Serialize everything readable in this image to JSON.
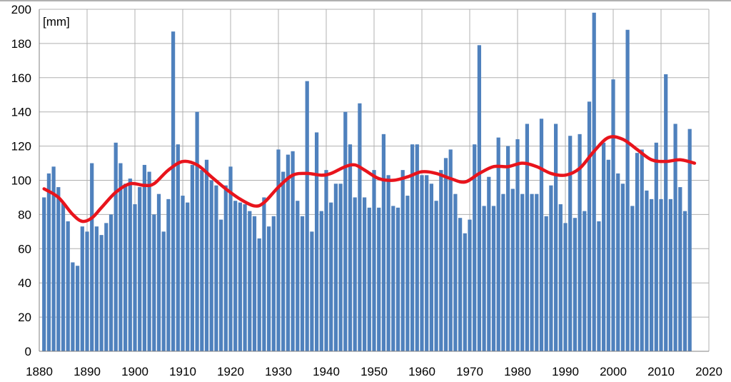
{
  "chart_data": {
    "type": "bar",
    "unit_label": "[mm]",
    "x_start_year": 1881,
    "xlim": [
      1880,
      2020
    ],
    "ylim": [
      0,
      200
    ],
    "x_ticks": [
      "1880",
      "1890",
      "1900",
      "1910",
      "1920",
      "1930",
      "1940",
      "1950",
      "1960",
      "1970",
      "1980",
      "1990",
      "2000",
      "2010",
      "2020"
    ],
    "y_ticks": [
      "0",
      "20",
      "40",
      "60",
      "80",
      "100",
      "120",
      "140",
      "160",
      "180",
      "200"
    ],
    "grid": true,
    "bar_color": "#4f81bd",
    "line_color": "#e8141c",
    "values": [
      90,
      104,
      108,
      96,
      87,
      76,
      52,
      50,
      73,
      70,
      110,
      73,
      68,
      75,
      80,
      122,
      110,
      98,
      101,
      86,
      96,
      109,
      105,
      80,
      92,
      70,
      89,
      187,
      121,
      91,
      87,
      109,
      140,
      106,
      112,
      100,
      97,
      77,
      97,
      108,
      88,
      87,
      86,
      82,
      79,
      66,
      90,
      73,
      79,
      118,
      105,
      115,
      117,
      88,
      79,
      158,
      70,
      128,
      82,
      106,
      87,
      98,
      98,
      140,
      121,
      90,
      145,
      90,
      84,
      106,
      84,
      127,
      103,
      85,
      84,
      106,
      91,
      121,
      121,
      103,
      103,
      98,
      88,
      106,
      113,
      118,
      92,
      78,
      69,
      77,
      121,
      179,
      85,
      102,
      85,
      125,
      92,
      120,
      95,
      124,
      92,
      133,
      92,
      92,
      136,
      79,
      97,
      133,
      86,
      75,
      126,
      78,
      127,
      82,
      146,
      198,
      76,
      122,
      112,
      159,
      104,
      98,
      188,
      85,
      116,
      118,
      94,
      89,
      122,
      89,
      162,
      89,
      133,
      96,
      82,
      130
    ],
    "trend": [
      [
        1881,
        95
      ],
      [
        1884,
        90
      ],
      [
        1887,
        80
      ],
      [
        1889,
        76
      ],
      [
        1891,
        78
      ],
      [
        1893,
        84
      ],
      [
        1896,
        93
      ],
      [
        1899,
        98
      ],
      [
        1902,
        97
      ],
      [
        1904,
        98
      ],
      [
        1907,
        106
      ],
      [
        1910,
        111
      ],
      [
        1913,
        109
      ],
      [
        1916,
        102
      ],
      [
        1919,
        95
      ],
      [
        1922,
        89
      ],
      [
        1925,
        85
      ],
      [
        1927,
        87
      ],
      [
        1930,
        96
      ],
      [
        1933,
        103
      ],
      [
        1936,
        104
      ],
      [
        1939,
        103
      ],
      [
        1941,
        104
      ],
      [
        1944,
        108
      ],
      [
        1946,
        109
      ],
      [
        1948,
        106
      ],
      [
        1951,
        101
      ],
      [
        1954,
        100
      ],
      [
        1957,
        102
      ],
      [
        1960,
        105
      ],
      [
        1963,
        104
      ],
      [
        1966,
        101
      ],
      [
        1969,
        99
      ],
      [
        1972,
        104
      ],
      [
        1975,
        108
      ],
      [
        1978,
        108
      ],
      [
        1981,
        110
      ],
      [
        1984,
        108
      ],
      [
        1987,
        104
      ],
      [
        1990,
        103
      ],
      [
        1993,
        107
      ],
      [
        1996,
        117
      ],
      [
        1999,
        125
      ],
      [
        2002,
        124
      ],
      [
        2005,
        118
      ],
      [
        2008,
        112
      ],
      [
        2011,
        111
      ],
      [
        2014,
        112
      ],
      [
        2017,
        110
      ]
    ]
  }
}
